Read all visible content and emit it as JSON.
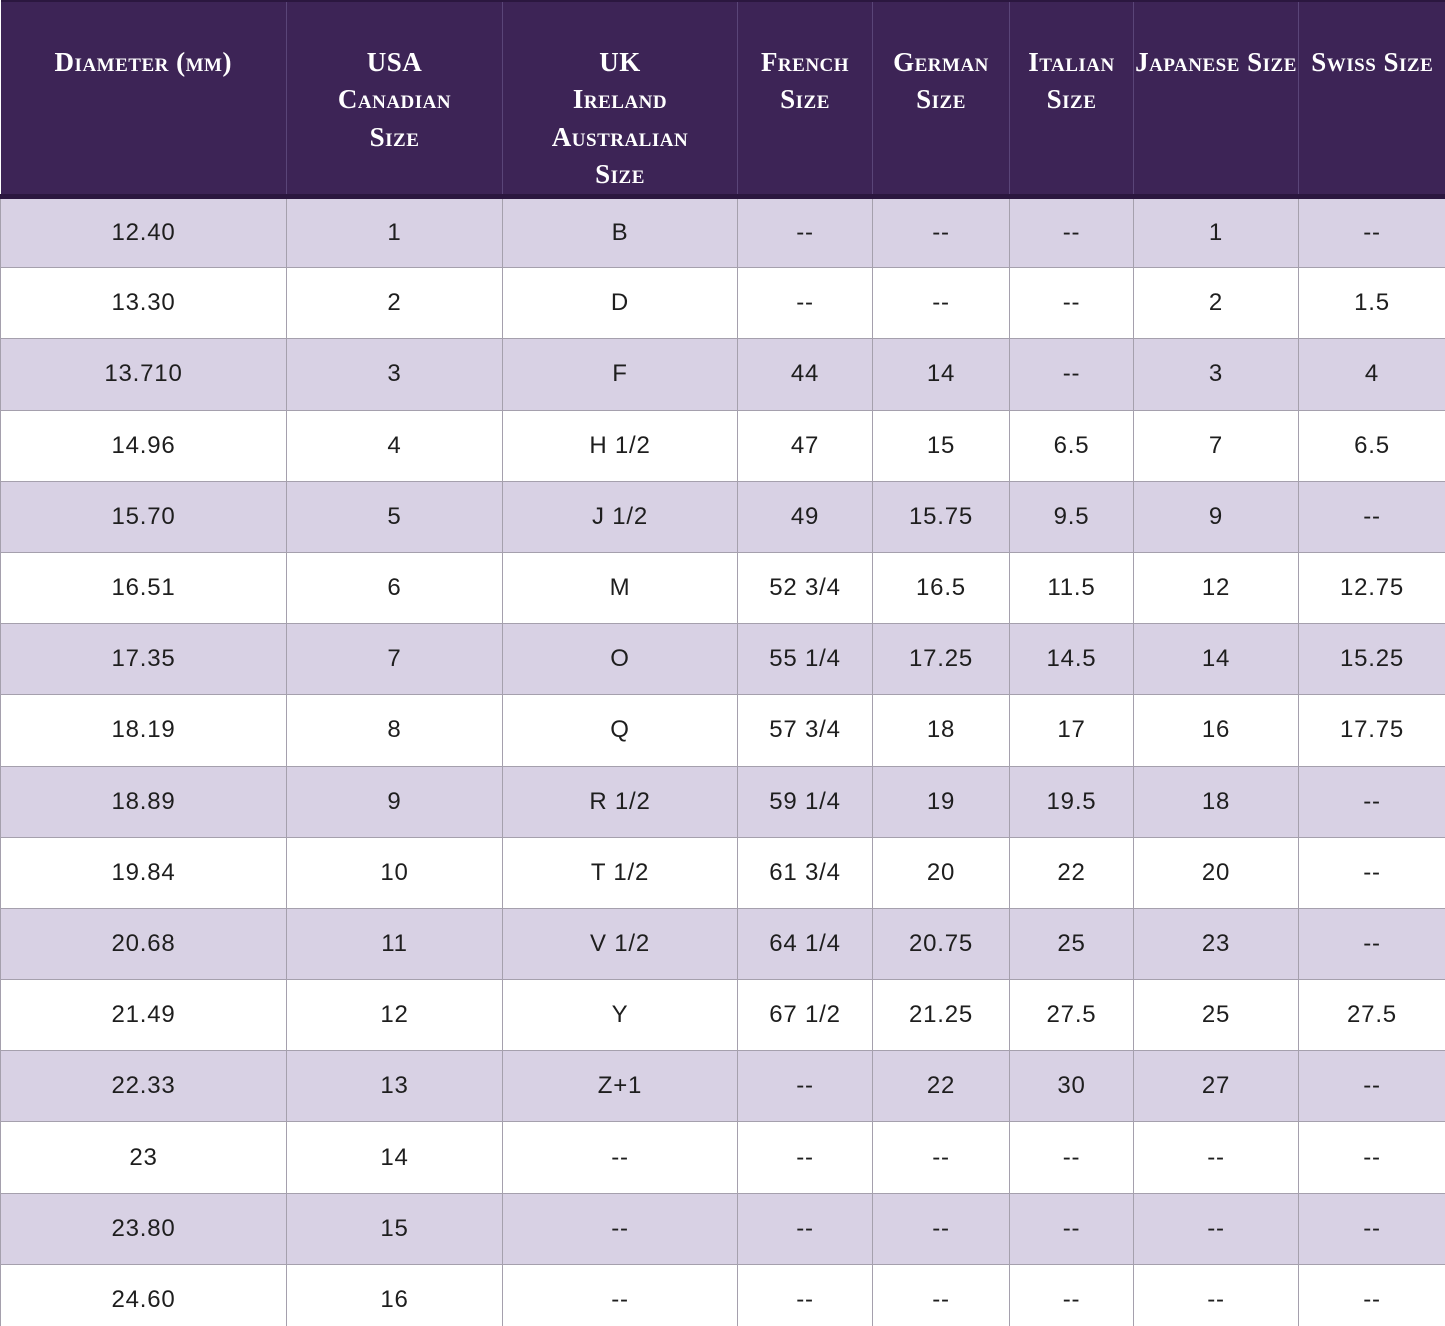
{
  "chart_data": {
    "type": "table",
    "columns": [
      {
        "label": "Diameter (mm)",
        "lines": [
          "Diameter (mm)"
        ]
      },
      {
        "label": "USA Canadian Size",
        "lines": [
          "USA",
          "Canadian",
          "Size"
        ]
      },
      {
        "label": "UK Ireland Australian Size",
        "lines": [
          "UK",
          "Ireland",
          "Australian",
          "Size"
        ]
      },
      {
        "label": "French Size",
        "lines": [
          "French",
          "Size"
        ]
      },
      {
        "label": "German Size",
        "lines": [
          "German",
          "Size"
        ]
      },
      {
        "label": "Italian Size",
        "lines": [
          "Italian",
          "Size"
        ]
      },
      {
        "label": "Japanese Size",
        "lines": [
          "Japanese Size"
        ]
      },
      {
        "label": "Swiss Size",
        "lines": [
          "Swiss Size"
        ]
      }
    ],
    "rows": [
      [
        "12.40",
        "1",
        "B",
        "--",
        "--",
        "--",
        "1",
        "--"
      ],
      [
        "13.30",
        "2",
        "D",
        "--",
        "--",
        "--",
        "2",
        "1.5"
      ],
      [
        "13.710",
        "3",
        "F",
        "44",
        "14",
        "--",
        "3",
        "4"
      ],
      [
        "14.96",
        "4",
        "H 1/2",
        "47",
        "15",
        "6.5",
        "7",
        "6.5"
      ],
      [
        "15.70",
        "5",
        "J 1/2",
        "49",
        "15.75",
        "9.5",
        "9",
        "--"
      ],
      [
        "16.51",
        "6",
        "M",
        "52 3/4",
        "16.5",
        "11.5",
        "12",
        "12.75"
      ],
      [
        "17.35",
        "7",
        "O",
        "55 1/4",
        "17.25",
        "14.5",
        "14",
        "15.25"
      ],
      [
        "18.19",
        "8",
        "Q",
        "57 3/4",
        "18",
        "17",
        "16",
        "17.75"
      ],
      [
        "18.89",
        "9",
        "R 1/2",
        "59 1/4",
        "19",
        "19.5",
        "18",
        "--"
      ],
      [
        "19.84",
        "10",
        "T 1/2",
        "61 3/4",
        "20",
        "22",
        "20",
        "--"
      ],
      [
        "20.68",
        "11",
        "V 1/2",
        "64 1/4",
        "20.75",
        "25",
        "23",
        "--"
      ],
      [
        "21.49",
        "12",
        "Y",
        "67 1/2",
        "21.25",
        "27.5",
        "25",
        "27.5"
      ],
      [
        "22.33",
        "13",
        "Z+1",
        "--",
        "22",
        "30",
        "27",
        "--"
      ],
      [
        "23",
        "14",
        "--",
        "--",
        "--",
        "--",
        "--",
        "--"
      ],
      [
        "23.80",
        "15",
        "--",
        "--",
        "--",
        "--",
        "--",
        "--"
      ],
      [
        "24.60",
        "16",
        "--",
        "--",
        "--",
        "--",
        "--",
        "--"
      ]
    ],
    "layout": {
      "striped": true,
      "stripe_pattern": "odd-rows-lavender"
    }
  },
  "colors": {
    "header_bg": "#3d2456",
    "header_text": "#ffffff",
    "header_divider": "#5a4578",
    "header_underline": "#2b173f",
    "row_stripe": "#d8d1e4",
    "row_plain": "#ffffff",
    "grid_line": "#a5a0ad",
    "body_text": "#1e1e1e"
  }
}
